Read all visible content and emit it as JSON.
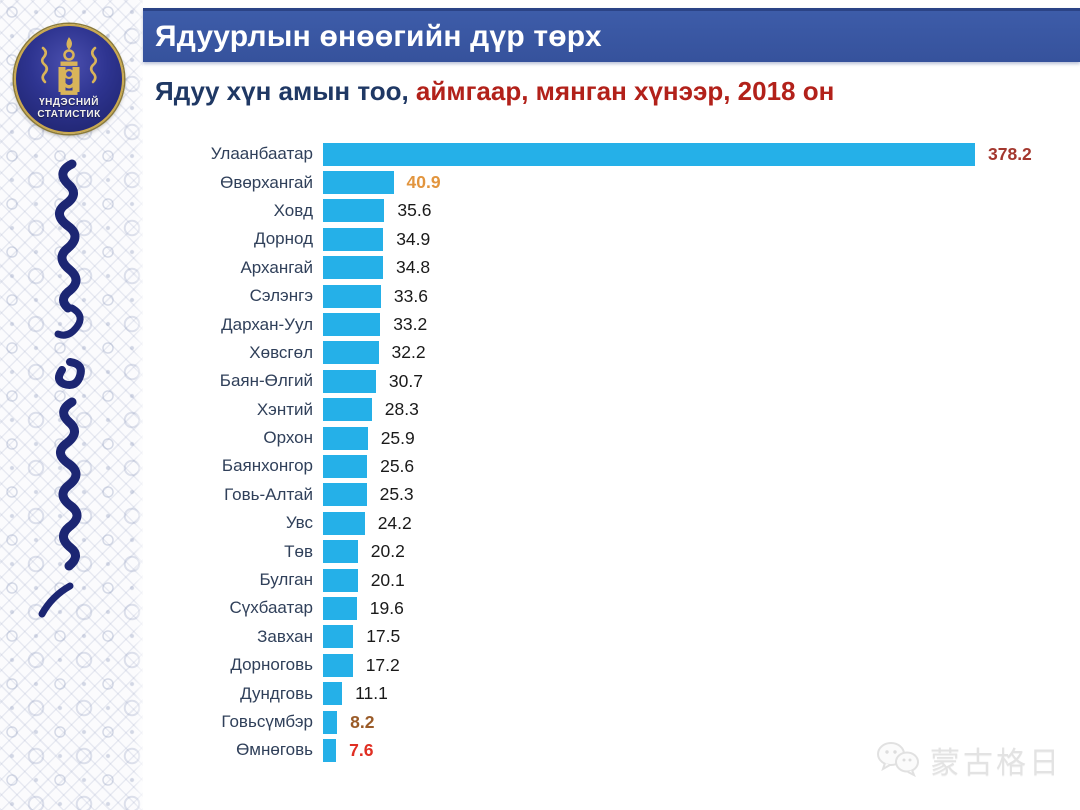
{
  "header": {
    "title": "Ядуурлын өнөөгийн дүр төрх"
  },
  "subtitle": {
    "part1": "Ядуу хүн амын тоо,",
    "part2": " аймгаар, мянган хүнээр, 2018 он"
  },
  "sidebar": {
    "logo_line1": "ҮНДЭСНИЙ",
    "logo_line2": "СТАТИСТИК"
  },
  "watermark": {
    "text": "蒙古格日",
    "icon": "wechat-icon"
  },
  "colors": {
    "header_bg": "#36529c",
    "subtitle_navy": "#1f3864",
    "subtitle_red": "#b2211a",
    "bar": "#25b0e8",
    "label": "#30405a",
    "value_default": "#1a1a1a",
    "value_darkred": "#a3372e",
    "value_orange": "#e2953e",
    "value_brown": "#9a5b28",
    "value_red": "#e02f23"
  },
  "chart_data": {
    "type": "bar",
    "orientation": "horizontal",
    "title": "Ядуу хүн амын тоо, аймгаар, мянган хүнээр, 2018 он",
    "xlabel": "",
    "ylabel": "",
    "unit": "мянган хүнээр",
    "year": "2018",
    "axis_max": 378.2,
    "grid": false,
    "legend": false,
    "bar_color": "#25b0e8",
    "categories": [
      "Улаанбаатар",
      "Өвөрхангай",
      "Ховд",
      "Дорнод",
      "Архангай",
      "Сэлэнгэ",
      "Дархан-Уул",
      "Хөвсгөл",
      "Баян-Өлгий",
      "Хэнтий",
      "Орхон",
      "Баянхонгор",
      "Говь-Алтай",
      "Увс",
      "Төв",
      "Булган",
      "Сүхбаатар",
      "Завхан",
      "Дорноговь",
      "Дундговь",
      "Говьсүмбэр",
      "Өмнөговь"
    ],
    "values": [
      378.2,
      40.9,
      35.6,
      34.9,
      34.8,
      33.6,
      33.2,
      32.2,
      30.7,
      28.3,
      25.9,
      25.6,
      25.3,
      24.2,
      20.2,
      20.1,
      19.6,
      17.5,
      17.2,
      11.1,
      8.2,
      7.6
    ],
    "value_colors": [
      "#a3372e",
      "#e2953e",
      null,
      null,
      null,
      null,
      null,
      null,
      null,
      null,
      null,
      null,
      null,
      null,
      null,
      null,
      null,
      null,
      null,
      null,
      "#9a5b28",
      "#e02f23"
    ]
  }
}
